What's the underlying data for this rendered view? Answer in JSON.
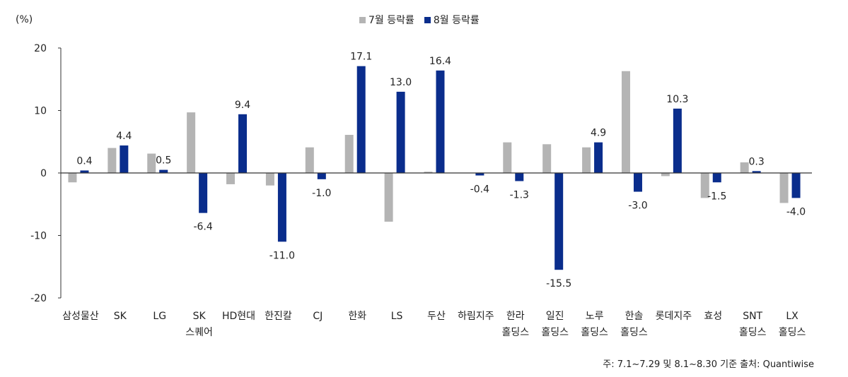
{
  "chart_data": {
    "type": "bar",
    "unit_label": "(%)",
    "categories": [
      [
        "삼성물산"
      ],
      [
        "SK"
      ],
      [
        "LG"
      ],
      [
        "SK",
        "스퀘어"
      ],
      [
        "HD현대"
      ],
      [
        "한진칼"
      ],
      [
        "CJ"
      ],
      [
        "한화"
      ],
      [
        "LS"
      ],
      [
        "두산"
      ],
      [
        "하림지주"
      ],
      [
        "한라",
        "홀딩스"
      ],
      [
        "일진",
        "홀딩스"
      ],
      [
        "노루",
        "홀딩스"
      ],
      [
        "한솔",
        "홀딩스"
      ],
      [
        "롯데지주"
      ],
      [
        "효성"
      ],
      [
        "SNT",
        "홀딩스"
      ],
      [
        "LX",
        "홀딩스"
      ]
    ],
    "series": [
      {
        "name": "7월 등락률",
        "color": "#b4b4b4",
        "values": [
          -1.5,
          4.0,
          3.1,
          9.7,
          -1.8,
          -2.0,
          4.1,
          6.1,
          -7.8,
          0.2,
          0.0,
          4.9,
          4.6,
          4.1,
          16.3,
          -0.5,
          -4.0,
          1.7,
          -4.8
        ],
        "labels": [
          null,
          null,
          null,
          null,
          null,
          null,
          null,
          null,
          null,
          null,
          null,
          null,
          null,
          null,
          null,
          null,
          null,
          null,
          null
        ]
      },
      {
        "name": "8월 등락률",
        "color": "#0a2d8c",
        "values": [
          0.4,
          4.4,
          0.5,
          -6.4,
          9.4,
          -11.0,
          -1.0,
          17.1,
          13.0,
          16.4,
          -0.4,
          -1.3,
          -15.5,
          4.9,
          -3.0,
          10.3,
          -1.5,
          0.3,
          -4.0
        ],
        "labels": [
          "0.4",
          "4.4",
          "0.5",
          "-6.4",
          "9.4",
          "-11.0",
          "-1.0",
          "17.1",
          "13.0",
          "16.4",
          "-0.4",
          "-1.3",
          "-15.5",
          "4.9",
          "-3.0",
          "10.3",
          "-1.5",
          "0.3",
          "-4.0"
        ]
      }
    ],
    "ylim": [
      -20,
      20
    ],
    "yticks": [
      20,
      10,
      0,
      -10,
      -20
    ],
    "legend_position": "top-center",
    "grid": false
  },
  "source_note": "주: 7.1~7.29 및 8.1~8.30 기준 출처: Quantiwise"
}
